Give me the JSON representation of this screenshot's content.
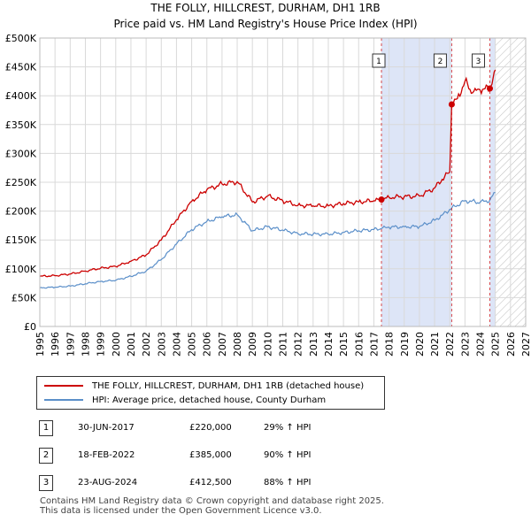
{
  "title": "THE FOLLY, HILLCREST, DURHAM, DH1 1RB",
  "subtitle": "Price paid vs. HM Land Registry's House Price Index (HPI)",
  "chart_data": {
    "type": "line",
    "title": "THE FOLLY, HILLCREST, DURHAM, DH1 1RB",
    "subtitle": "Price paid vs. HM Land Registry's House Price Index (HPI)",
    "xlim": [
      1995,
      2027
    ],
    "ylim": [
      0,
      500000
    ],
    "x_ticks": [
      "1995",
      "1996",
      "1997",
      "1998",
      "1999",
      "2000",
      "2001",
      "2002",
      "2003",
      "2004",
      "2005",
      "2006",
      "2007",
      "2008",
      "2009",
      "2010",
      "2011",
      "2012",
      "2013",
      "2014",
      "2015",
      "2016",
      "2017",
      "2018",
      "2019",
      "2020",
      "2021",
      "2022",
      "2023",
      "2024",
      "2025",
      "2026",
      "2027"
    ],
    "y_ticks": [
      {
        "value": 0,
        "label": "£0"
      },
      {
        "value": 50000,
        "label": "£50K"
      },
      {
        "value": 100000,
        "label": "£100K"
      },
      {
        "value": 150000,
        "label": "£150K"
      },
      {
        "value": 200000,
        "label": "£200K"
      },
      {
        "value": 250000,
        "label": "£250K"
      },
      {
        "value": 300000,
        "label": "£300K"
      },
      {
        "value": 350000,
        "label": "£350K"
      },
      {
        "value": 400000,
        "label": "£400K"
      },
      {
        "value": 450000,
        "label": "£450K"
      },
      {
        "value": 500000,
        "label": "£500K"
      }
    ],
    "grid": true,
    "shaded_ranges": [
      {
        "from": 2017.5,
        "to": 2022.13,
        "color": "#dde5f7"
      },
      {
        "from": 2024.64,
        "to": 2025.0,
        "color": "#dde5f7"
      }
    ],
    "hatch_after": 2025.0,
    "series": [
      {
        "name": "THE FOLLY, HILLCREST, DURHAM, DH1 1RB (detached house)",
        "color": "#cc0000",
        "points": [
          [
            1995,
            87000
          ],
          [
            1996,
            88000
          ],
          [
            1997,
            91000
          ],
          [
            1998,
            96000
          ],
          [
            1999,
            101000
          ],
          [
            2000,
            104000
          ],
          [
            2001,
            113000
          ],
          [
            2002,
            124000
          ],
          [
            2003,
            150000
          ],
          [
            2004,
            185000
          ],
          [
            2005,
            217000
          ],
          [
            2006,
            237000
          ],
          [
            2007,
            247000
          ],
          [
            2008,
            251000
          ],
          [
            2009,
            216000
          ],
          [
            2010,
            226000
          ],
          [
            2011,
            218000
          ],
          [
            2012,
            210000
          ],
          [
            2013,
            209000
          ],
          [
            2014,
            209000
          ],
          [
            2015,
            213000
          ],
          [
            2016,
            216000
          ],
          [
            2017,
            218000
          ],
          [
            2017.5,
            220000
          ],
          [
            2018,
            224000
          ],
          [
            2019,
            225000
          ],
          [
            2020,
            226000
          ],
          [
            2021,
            240000
          ],
          [
            2021.5,
            255000
          ],
          [
            2022.0,
            268000
          ],
          [
            2022.13,
            385000
          ],
          [
            2022.5,
            395000
          ],
          [
            2023,
            425000
          ],
          [
            2023.5,
            405000
          ],
          [
            2024,
            410000
          ],
          [
            2024.64,
            412500
          ],
          [
            2024.85,
            430000
          ],
          [
            2025.0,
            445000
          ]
        ]
      },
      {
        "name": "HPI: Average price, detached house, County Durham",
        "color": "#5b8fc9",
        "points": [
          [
            1995,
            67000
          ],
          [
            1996,
            68000
          ],
          [
            1997,
            70000
          ],
          [
            1998,
            74000
          ],
          [
            1999,
            78000
          ],
          [
            2000,
            80000
          ],
          [
            2001,
            87000
          ],
          [
            2002,
            96000
          ],
          [
            2003,
            116000
          ],
          [
            2004,
            143000
          ],
          [
            2005,
            168000
          ],
          [
            2006,
            182000
          ],
          [
            2007,
            190000
          ],
          [
            2008,
            194000
          ],
          [
            2009,
            166000
          ],
          [
            2010,
            173000
          ],
          [
            2011,
            167000
          ],
          [
            2012,
            161000
          ],
          [
            2013,
            160000
          ],
          [
            2014,
            160000
          ],
          [
            2015,
            163000
          ],
          [
            2016,
            166000
          ],
          [
            2017,
            168000
          ],
          [
            2017.5,
            170000
          ],
          [
            2018,
            172000
          ],
          [
            2019,
            173000
          ],
          [
            2020,
            173000
          ],
          [
            2021,
            184000
          ],
          [
            2021.5,
            193000
          ],
          [
            2022,
            203000
          ],
          [
            2023,
            218000
          ],
          [
            2024,
            215000
          ],
          [
            2024.64,
            219000
          ],
          [
            2025.0,
            232000
          ]
        ]
      }
    ],
    "sales": [
      {
        "label": "1",
        "x": 2017.5,
        "price": 220000
      },
      {
        "label": "2",
        "x": 2022.13,
        "price": 385000
      },
      {
        "label": "3",
        "x": 2024.64,
        "price": 412500
      }
    ]
  },
  "legend": {
    "property": "THE FOLLY, HILLCREST, DURHAM, DH1 1RB (detached house)",
    "hpi": "HPI: Average price, detached house, County Durham"
  },
  "sales_table": [
    {
      "num": "1",
      "date": "30-JUN-2017",
      "price": "£220,000",
      "hpi": "29% ↑ HPI"
    },
    {
      "num": "2",
      "date": "18-FEB-2022",
      "price": "£385,000",
      "hpi": "90% ↑ HPI"
    },
    {
      "num": "3",
      "date": "23-AUG-2024",
      "price": "£412,500",
      "hpi": "88% ↑ HPI"
    }
  ],
  "footer": {
    "line1": "Contains HM Land Registry data © Crown copyright and database right 2025.",
    "line2": "This data is licensed under the Open Government Licence v3.0."
  },
  "colors": {
    "property": "#cc0000",
    "hpi": "#5b8fc9",
    "shade": "#dde5f7",
    "grid": "#d9d9d9",
    "marker": "#cc0000"
  }
}
